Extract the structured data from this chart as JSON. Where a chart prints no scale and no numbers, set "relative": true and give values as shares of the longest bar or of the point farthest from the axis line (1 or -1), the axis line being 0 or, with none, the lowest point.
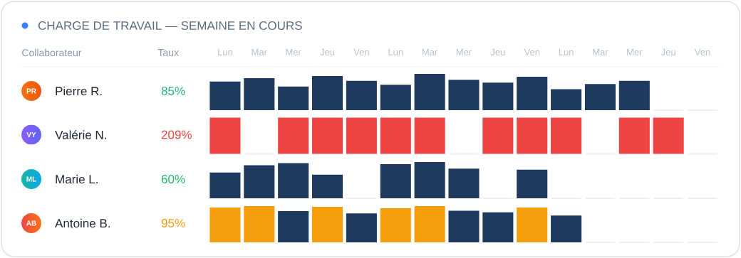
{
  "chart_data": [
    {
      "type": "bar",
      "title": "CHARGE DE TRAVAIL — SEMAINE EN COURS",
      "ylabel": "Pierre R.",
      "annotations": [
        "PR",
        "85%",
        "Collaborateur",
        "Taux"
      ],
      "relative": true,
      "tick_labels": "x",
      "categories": [
        "Lun",
        "Mar",
        "Mer",
        "Jeu",
        "Ven",
        "Lun",
        "Mar",
        "Mer",
        "Jeu",
        "Ven",
        "Lun",
        "Mar",
        "Mer",
        "Jeu",
        "Ven"
      ],
      "values": [
        0.79,
        0.88,
        0.65,
        0.94,
        0.81,
        0.7,
        1,
        0.84,
        0.76,
        0.92,
        0.58,
        0.72,
        0.81,
        0,
        0
      ],
      "colors": [
        "#1f3a5f",
        "#1f3a5f",
        "#1f3a5f",
        "#1f3a5f",
        "#1f3a5f",
        "#1f3a5f",
        "#1f3a5f",
        "#1f3a5f",
        "#1f3a5f",
        "#1f3a5f",
        "#1f3a5f",
        "#1f3a5f",
        "#1f3a5f",
        "#eef0f3",
        "#eef0f3"
      ]
    },
    {
      "type": "bar",
      "ylabel": "Valérie N.",
      "annotations": [
        "VY",
        "209%"
      ],
      "relative": true,
      "categories": [
        null,
        null,
        null,
        null,
        null,
        null,
        null,
        null,
        null,
        null,
        null,
        null,
        null,
        null,
        null
      ],
      "values": [
        1,
        0,
        1,
        1,
        1,
        1,
        1,
        0,
        1,
        1,
        1,
        0,
        1,
        1,
        0
      ],
      "colors": [
        "#ef4444",
        "#eef0f3",
        "#ef4444",
        "#ef4444",
        "#ef4444",
        "#ef4444",
        "#ef4444",
        "#eef0f3",
        "#ef4444",
        "#ef4444",
        "#ef4444",
        "#eef0f3",
        "#ef4444",
        "#ef4444",
        "#eef0f3"
      ]
    },
    {
      "type": "bar",
      "ylabel": "Marie L.",
      "annotations": [
        "ML",
        "60%"
      ],
      "relative": true,
      "categories": [
        null,
        null,
        null,
        null,
        null,
        null,
        null,
        null,
        null,
        null,
        null,
        null,
        null,
        null,
        null
      ],
      "values": [
        0.71,
        0.91,
        0.97,
        0.65,
        0,
        0.94,
        1,
        0.82,
        0,
        0.79,
        0,
        0,
        0,
        0,
        0
      ],
      "colors": [
        "#1f3a5f",
        "#1f3a5f",
        "#1f3a5f",
        "#1f3a5f",
        "#eef0f3",
        "#1f3a5f",
        "#1f3a5f",
        "#1f3a5f",
        "#eef0f3",
        "#1f3a5f",
        "#eef0f3",
        "#eef0f3",
        "#eef0f3",
        "#eef0f3",
        "#eef0f3"
      ]
    },
    {
      "type": "bar",
      "ylabel": "Antoine B.",
      "annotations": [
        "AB",
        "95%"
      ],
      "relative": true,
      "categories": [
        null,
        null,
        null,
        null,
        null,
        null,
        null,
        null,
        null,
        null,
        null,
        null,
        null,
        null,
        null
      ],
      "values": [
        0.96,
        1,
        0.86,
        0.98,
        0.8,
        0.94,
        1,
        0.87,
        0.83,
        0.96,
        0.74,
        0,
        0,
        0,
        0
      ],
      "colors": [
        "#f59e0b",
        "#f59e0b",
        "#1f3a5f",
        "#f59e0b",
        "#1f3a5f",
        "#f59e0b",
        "#f59e0b",
        "#1f3a5f",
        "#1f3a5f",
        "#f59e0b",
        "#1f3a5f",
        "#eef0f3",
        "#eef0f3",
        "#eef0f3",
        "#eef0f3"
      ]
    }
  ]
}
